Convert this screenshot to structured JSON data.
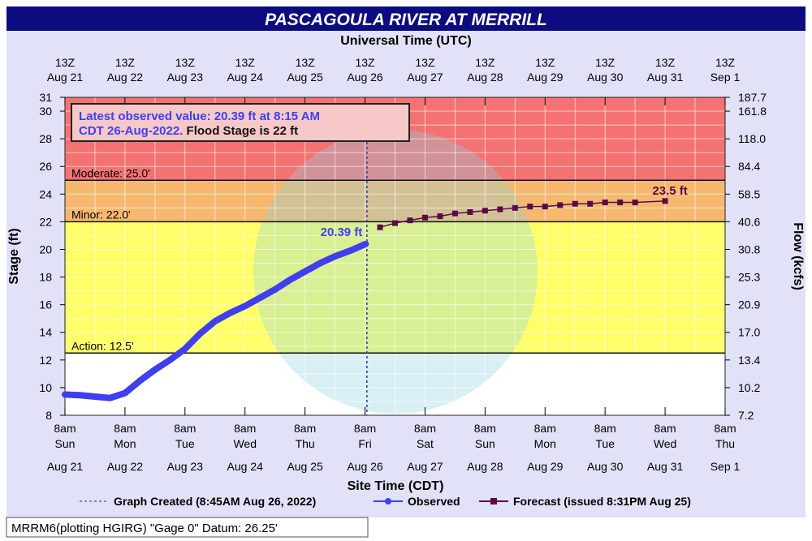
{
  "chart_data": {
    "type": "line",
    "title": "PASCAGOULA RIVER AT MERRILL",
    "top_axis_title": "Universal Time (UTC)",
    "top_ticks": [
      [
        "13Z",
        "Aug 21"
      ],
      [
        "13Z",
        "Aug 22"
      ],
      [
        "13Z",
        "Aug 23"
      ],
      [
        "13Z",
        "Aug 24"
      ],
      [
        "13Z",
        "Aug 25"
      ],
      [
        "13Z",
        "Aug 26"
      ],
      [
        "13Z",
        "Aug 27"
      ],
      [
        "13Z",
        "Aug 28"
      ],
      [
        "13Z",
        "Aug 29"
      ],
      [
        "13Z",
        "Aug 30"
      ],
      [
        "13Z",
        "Aug 31"
      ],
      [
        "13Z",
        "Sep 1"
      ]
    ],
    "bottom_ticks": [
      [
        "8am",
        "Sun",
        "Aug 21"
      ],
      [
        "8am",
        "Mon",
        "Aug 22"
      ],
      [
        "8am",
        "Tue",
        "Aug 23"
      ],
      [
        "8am",
        "Wed",
        "Aug 24"
      ],
      [
        "8am",
        "Thu",
        "Aug 25"
      ],
      [
        "8am",
        "Fri",
        "Aug 26"
      ],
      [
        "8am",
        "Sat",
        "Aug 27"
      ],
      [
        "8am",
        "Sun",
        "Aug 28"
      ],
      [
        "8am",
        "Mon",
        "Aug 29"
      ],
      [
        "8am",
        "Tue",
        "Aug 30"
      ],
      [
        "8am",
        "Wed",
        "Aug 31"
      ],
      [
        "8am",
        "Thu",
        "Sep 1"
      ]
    ],
    "xlabel": "Site Time (CDT)",
    "ylabel": "Stage (ft)",
    "y2label": "Flow (kcfs)",
    "ylim": [
      8,
      31
    ],
    "y_ticks": [
      8,
      10,
      12,
      14,
      16,
      18,
      20,
      22,
      24,
      26,
      28,
      30,
      31
    ],
    "y2_ticks": [
      "7.2",
      "10.2",
      "13.4",
      "17.0",
      "20.9",
      "25.3",
      "30.8",
      "40.6",
      "58.5",
      "84.4",
      "118.0",
      "161.8",
      "187.7"
    ],
    "grid": true,
    "thresholds": [
      {
        "label": "Moderate:  25.0'",
        "value": 25.0,
        "color": "#f47272"
      },
      {
        "label": "Minor:  22.0'",
        "value": 22.0,
        "color": "#f5b86e"
      },
      {
        "label": "Action:  12.5'",
        "value": 12.5,
        "color": "#ffff6a"
      }
    ],
    "below_action_color": "#ffffff",
    "annotation": {
      "line1": "Latest observed value: 20.39 ft at 8:15 AM",
      "line2a": "CDT 26-Aug-2022.",
      "line2b": "Flood Stage is 22 ft"
    },
    "series": [
      {
        "name": "Observed",
        "color": "#3f3ff0",
        "x_days_since_aug21_8am": null,
        "points": [
          [
            "Aug 21 8AM",
            9.5
          ],
          [
            "Aug 21 2PM",
            9.45
          ],
          [
            "Aug 21 8PM",
            9.35
          ],
          [
            "Aug 22 2AM",
            9.25
          ],
          [
            "Aug 22 8AM",
            9.6
          ],
          [
            "Aug 22 2PM",
            10.5
          ],
          [
            "Aug 22 8PM",
            11.3
          ],
          [
            "Aug 23 2AM",
            12.0
          ],
          [
            "Aug 23 8AM",
            12.8
          ],
          [
            "Aug 23 2PM",
            13.9
          ],
          [
            "Aug 23 8PM",
            14.8
          ],
          [
            "Aug 24 2AM",
            15.4
          ],
          [
            "Aug 24 8AM",
            15.9
          ],
          [
            "Aug 24 2PM",
            16.5
          ],
          [
            "Aug 24 8PM",
            17.1
          ],
          [
            "Aug 25 2AM",
            17.8
          ],
          [
            "Aug 25 8AM",
            18.4
          ],
          [
            "Aug 25 2PM",
            19.0
          ],
          [
            "Aug 25 8PM",
            19.5
          ],
          [
            "Aug 26 2AM",
            19.9
          ],
          [
            "Aug 26 8AM",
            20.39
          ]
        ],
        "label": "20.39 ft"
      },
      {
        "name": "Forecast",
        "color": "#5a0a4a",
        "points": [
          [
            "Aug 26 2PM",
            21.6
          ],
          [
            "Aug 26 8PM",
            21.9
          ],
          [
            "Aug 27 2AM",
            22.1
          ],
          [
            "Aug 27 8AM",
            22.3
          ],
          [
            "Aug 27 2PM",
            22.4
          ],
          [
            "Aug 27 8PM",
            22.6
          ],
          [
            "Aug 28 2AM",
            22.7
          ],
          [
            "Aug 28 8AM",
            22.8
          ],
          [
            "Aug 28 2PM",
            22.9
          ],
          [
            "Aug 28 8PM",
            23.0
          ],
          [
            "Aug 29 2AM",
            23.1
          ],
          [
            "Aug 29 8AM",
            23.1
          ],
          [
            "Aug 29 2PM",
            23.2
          ],
          [
            "Aug 29 8PM",
            23.3
          ],
          [
            "Aug 30 2AM",
            23.3
          ],
          [
            "Aug 30 8AM",
            23.4
          ],
          [
            "Aug 30 2PM",
            23.4
          ],
          [
            "Aug 30 8PM",
            23.4
          ],
          [
            "Aug 31 8AM",
            23.5
          ]
        ],
        "label": "23.5 ft"
      }
    ],
    "legend": {
      "created": "Graph Created (8:45AM Aug 26, 2022)",
      "observed": "Observed",
      "forecast": "Forecast (issued 8:31PM Aug 25)"
    },
    "footer": "MRRM6(plotting HGIRG) \"Gage 0\" Datum:  26.25'"
  }
}
